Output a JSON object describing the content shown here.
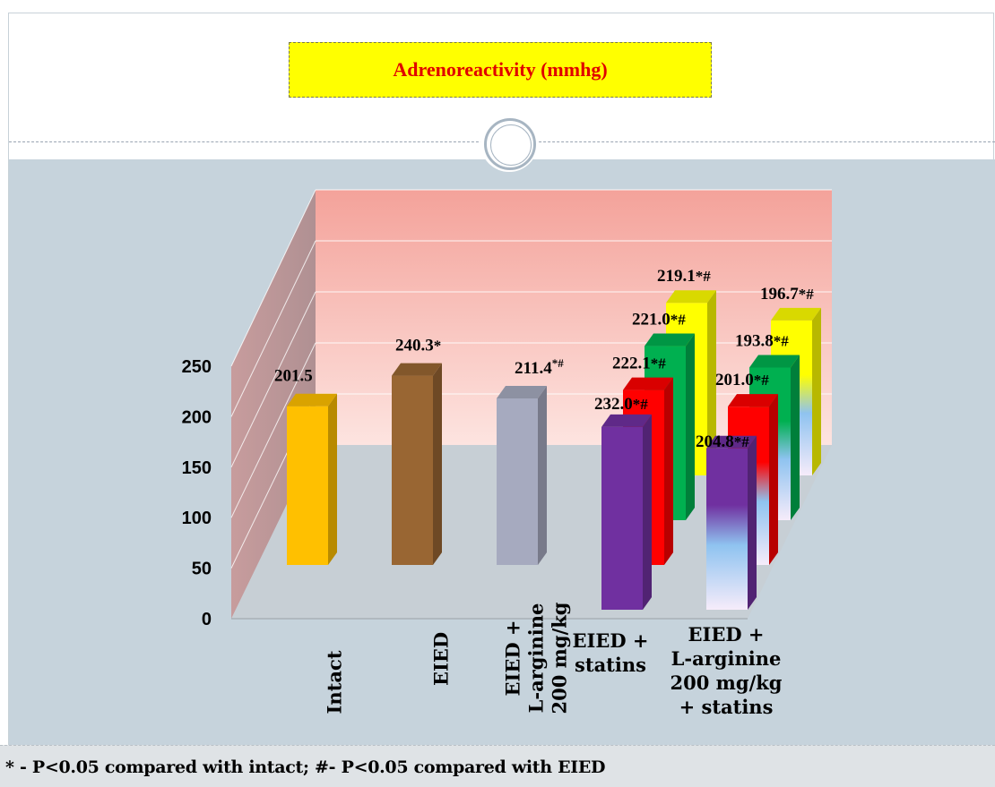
{
  "title": "Adrenoreactivity (mmhg)",
  "footnote": "* - P<0.05 compared with intact; #- P<0.05 compared with EIED",
  "chart_data": {
    "type": "bar",
    "style": "3d-clustered-depth",
    "title": "Adrenoreactivity (mmhg)",
    "ylim": [
      0,
      250
    ],
    "yticks": [
      0,
      50,
      100,
      150,
      200,
      250
    ],
    "grid": true,
    "legend": "none",
    "categories": [
      "Intact",
      "EIED",
      "EIED + L-arginine 200 mg/kg",
      "EIED + statins",
      "EIED + L-arginine 200 mg/kg + statins"
    ],
    "category_labels": [
      [
        "Intact"
      ],
      [
        "EIED"
      ],
      [
        "EIED +",
        "L-arginine",
        "200 mg/kg"
      ],
      [
        "EIED +",
        "statins"
      ],
      [
        "EIED +",
        "L-arginine",
        "200 mg/kg",
        "+  statins"
      ]
    ],
    "category_orientation": [
      "vertical",
      "vertical",
      "vertical",
      "horizontal",
      "horizontal"
    ],
    "bars": [
      {
        "category": 0,
        "depth": 0,
        "value": 201.5,
        "label": "201.5",
        "color": "#ffc000"
      },
      {
        "category": 1,
        "depth": 0,
        "value": 240.3,
        "label": "240.3*",
        "color": "#996633"
      },
      {
        "category": 2,
        "depth": 0,
        "value": 211.4,
        "label": "211.4*#",
        "color": "#a6aabf"
      },
      {
        "category": 3,
        "depth": 0,
        "value": 232.0,
        "label": "232.0*#",
        "color": "#7030a0"
      },
      {
        "category": 3,
        "depth": 1,
        "value": 222.1,
        "label": "222.1*#",
        "color": "#ff0000"
      },
      {
        "category": 3,
        "depth": 2,
        "value": 221.0,
        "label": "221.0*#",
        "color": "#00b050"
      },
      {
        "category": 3,
        "depth": 3,
        "value": 219.1,
        "label": "219.1*#",
        "color": "#ffff00"
      },
      {
        "category": 4,
        "depth": 0,
        "value": 204.8,
        "label": "204.8*#",
        "color": "#7030a0"
      },
      {
        "category": 4,
        "depth": 1,
        "value": 201.0,
        "label": "201.0*#",
        "color": "#ff0000"
      },
      {
        "category": 4,
        "depth": 2,
        "value": 193.8,
        "label": "193.8*#",
        "color": "#00b050"
      },
      {
        "category": 4,
        "depth": 3,
        "value": 196.7,
        "label": "196.7*#",
        "color": "#ffff00"
      }
    ]
  }
}
